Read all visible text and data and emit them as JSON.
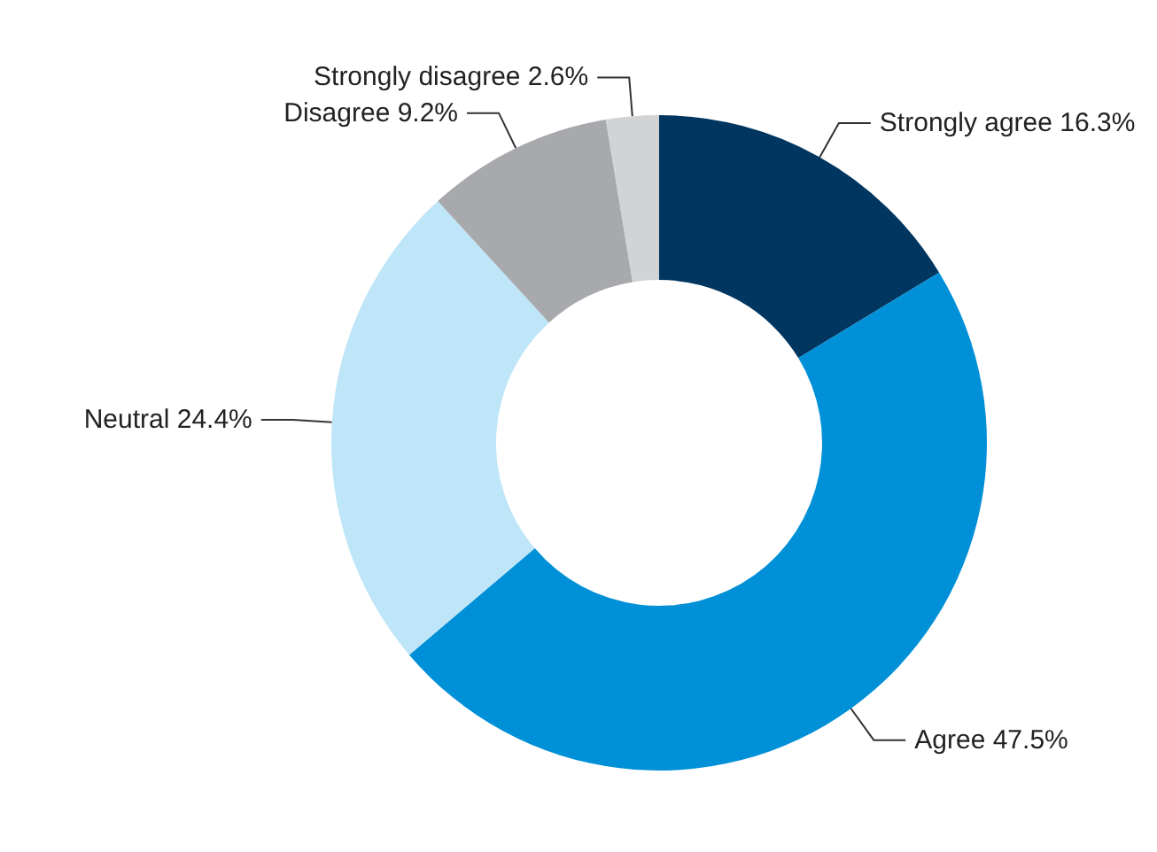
{
  "chart_data": {
    "type": "donut",
    "categories": [
      "Strongly agree",
      "Agree",
      "Neutral",
      "Disagree",
      "Strongly disagree"
    ],
    "values": [
      16.3,
      47.5,
      24.4,
      9.2,
      2.6
    ],
    "value_labels": [
      "16.3%",
      "47.5%",
      "24.4%",
      "9.2%",
      "2.6%"
    ],
    "colors": [
      "#003660",
      "#0090d8",
      "#bfe6f8",
      "#a7a9ac",
      "#d1d3d4"
    ],
    "legend": false
  }
}
